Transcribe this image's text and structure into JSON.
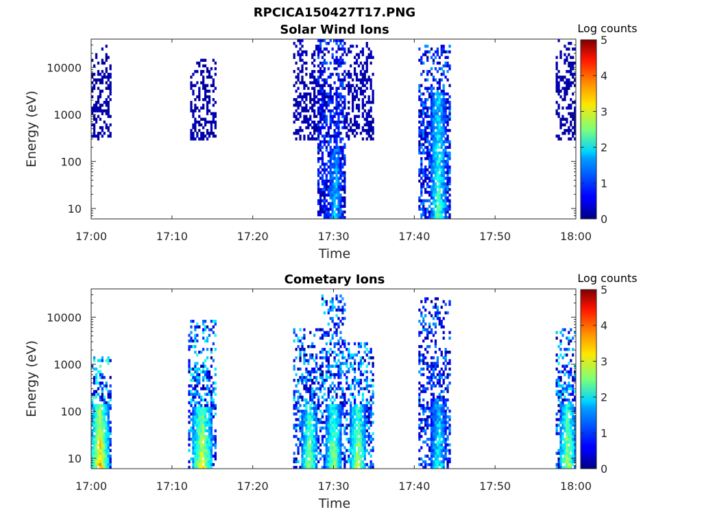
{
  "figure_title": "RPCICA150427T17.PNG",
  "colorbar": {
    "label": "Log counts",
    "min": 0,
    "max": 5,
    "ticks": [
      "0",
      "1",
      "2",
      "3",
      "4",
      "5"
    ],
    "colormap": "jet"
  },
  "chart_data": [
    {
      "type": "heatmap",
      "title": "Solar Wind Ions",
      "xlabel": "Time",
      "ylabel": "Energy (eV)",
      "x_ticks": [
        "17:00",
        "17:10",
        "17:20",
        "17:30",
        "17:40",
        "17:50",
        "18:00"
      ],
      "y_ticks": [
        "10",
        "100",
        "1000",
        "10000"
      ],
      "y_scale": "log",
      "xlim": [
        "17:00",
        "18:00"
      ],
      "ylim": [
        6,
        40000
      ],
      "clim": [
        0,
        5
      ],
      "bursts": [
        {
          "start": "17:00",
          "end": "17:02.5",
          "energy_low": 300,
          "energy_high": 30000,
          "density": 0.45,
          "core": [],
          "log_counts_peak": 0.5
        },
        {
          "start": "17:12.3",
          "end": "17:15.5",
          "energy_low": 300,
          "energy_high": 15000,
          "density": 0.45,
          "core": [],
          "log_counts_peak": 0.5
        },
        {
          "start": "17:25",
          "end": "17:29",
          "energy_low": 300,
          "energy_high": 40000,
          "density": 0.45,
          "core": [],
          "log_counts_peak": 0.6
        },
        {
          "start": "17:28",
          "end": "17:31.5",
          "energy_low": 6,
          "energy_high": 40000,
          "density": 0.65,
          "core": [
            {
              "start": "17:29.5",
              "end": "17:31",
              "energy_low": 6,
              "energy_high": 200,
              "log_counts": 1.8
            }
          ],
          "log_counts_peak": 1.8
        },
        {
          "start": "17:31.5",
          "end": "17:35",
          "energy_low": 300,
          "energy_high": 35000,
          "density": 0.45,
          "core": [],
          "log_counts_peak": 0.6
        },
        {
          "start": "17:40.5",
          "end": "17:44.5",
          "energy_low": 6,
          "energy_high": 30000,
          "density": 0.6,
          "core": [
            {
              "start": "17:42",
              "end": "17:44",
              "energy_low": 6,
              "energy_high": 3000,
              "log_counts": 2.3
            }
          ],
          "log_counts_peak": 2.3
        },
        {
          "start": "17:57.5",
          "end": "18:00",
          "energy_low": 300,
          "energy_high": 40000,
          "density": 0.45,
          "core": [],
          "log_counts_peak": 0.5
        }
      ]
    },
    {
      "type": "heatmap",
      "title": "Cometary Ions",
      "xlabel": "Time",
      "ylabel": "Energy (eV)",
      "x_ticks": [
        "17:00",
        "17:10",
        "17:20",
        "17:30",
        "17:40",
        "17:50",
        "18:00"
      ],
      "y_ticks": [
        "10",
        "100",
        "1000",
        "10000"
      ],
      "y_scale": "log",
      "xlim": [
        "17:00",
        "18:00"
      ],
      "ylim": [
        6,
        40000
      ],
      "clim": [
        0,
        5
      ],
      "bursts": [
        {
          "start": "17:00",
          "end": "17:02.5",
          "energy_low": 6,
          "energy_high": 1500,
          "density": 0.55,
          "core": [
            {
              "start": "17:00",
              "end": "17:02.2",
              "energy_low": 6,
              "energy_high": 150,
              "log_counts": 3.6
            }
          ],
          "log_counts_peak": 3.8
        },
        {
          "start": "17:12",
          "end": "17:15.5",
          "energy_low": 6,
          "energy_high": 9000,
          "density": 0.5,
          "core": [
            {
              "start": "17:12.5",
              "end": "17:15",
              "energy_low": 6,
              "energy_high": 120,
              "log_counts": 3.2
            }
          ],
          "log_counts_peak": 3.4
        },
        {
          "start": "17:25",
          "end": "17:28.5",
          "energy_low": 6,
          "energy_high": 6000,
          "density": 0.5,
          "core": [
            {
              "start": "17:26",
              "end": "17:28",
              "energy_low": 6,
              "energy_high": 150,
              "log_counts": 2.8
            }
          ],
          "log_counts_peak": 3.0
        },
        {
          "start": "17:28.5",
          "end": "17:31.5",
          "energy_low": 6,
          "energy_high": 30000,
          "density": 0.5,
          "core": [
            {
              "start": "17:29",
              "end": "17:31",
              "energy_low": 6,
              "energy_high": 150,
              "log_counts": 2.8
            }
          ],
          "log_counts_peak": 3.0
        },
        {
          "start": "17:31.5",
          "end": "17:35",
          "energy_low": 6,
          "energy_high": 3000,
          "density": 0.5,
          "core": [
            {
              "start": "17:32",
              "end": "17:34",
              "energy_low": 6,
              "energy_high": 150,
              "log_counts": 3.0
            }
          ],
          "log_counts_peak": 3.2
        },
        {
          "start": "17:40.5",
          "end": "17:44.5",
          "energy_low": 6,
          "energy_high": 25000,
          "density": 0.45,
          "core": [
            {
              "start": "17:42",
              "end": "17:44",
              "energy_low": 6,
              "energy_high": 200,
              "log_counts": 2.0
            }
          ],
          "log_counts_peak": 2.4
        },
        {
          "start": "17:57.5",
          "end": "18:00",
          "energy_low": 6,
          "energy_high": 6000,
          "density": 0.5,
          "core": [
            {
              "start": "17:58",
              "end": "18:00",
              "energy_low": 6,
              "energy_high": 150,
              "log_counts": 2.9
            }
          ],
          "log_counts_peak": 3.1
        }
      ]
    }
  ]
}
